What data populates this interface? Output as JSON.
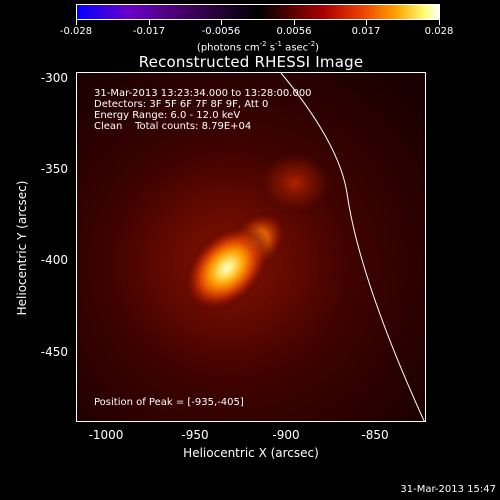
{
  "colorbar": {
    "tick_labels": [
      "-0.028",
      "-0.017",
      "-0.0056",
      "0.0056",
      "0.017",
      "0.028"
    ],
    "unit": {
      "prefix": "(photons cm",
      "exp1": "-2",
      "mid1": " s",
      "exp2": "-1",
      "mid2": " asec",
      "exp3": "-2",
      "suffix": ")"
    }
  },
  "title": "Reconstructed RHESSI Image",
  "info": {
    "line1": "31-Mar-2013 13:23:34.000 to 13:28:00.000",
    "line2": "Detectors: 3F 5F 6F 7F 8F 9F, Att 0",
    "line3": "Energy Range: 6.0 - 12.0 keV",
    "line4": "Clean    Total counts: 8.79E+04"
  },
  "peak_text": "Position of Peak = [-935,-405]",
  "x_axis": {
    "title": "Heliocentric X (arcsec)",
    "ticks": [
      "-1000",
      "-950",
      "-900",
      "-850"
    ],
    "range": [
      -1017,
      -825
    ]
  },
  "y_axis": {
    "title": "Heliocentric Y (arcsec)",
    "ticks": [
      "-300",
      "-350",
      "-400",
      "-450"
    ],
    "range": [
      -490,
      -298
    ]
  },
  "timestamp": "31-Mar-2013 15:47"
}
